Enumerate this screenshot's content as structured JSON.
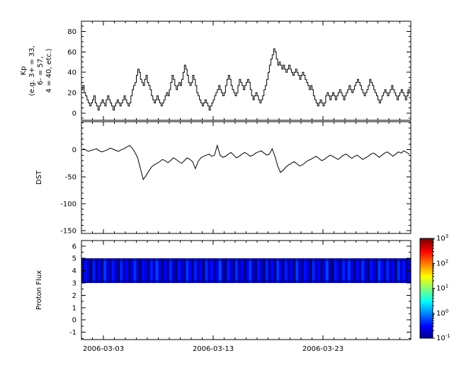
{
  "figure": {
    "background": "#ffffff",
    "axis_color": "#000000",
    "series_color": "#000000"
  },
  "xaxis": {
    "x_start": "2006-03-01",
    "x_end": "2006-03-31",
    "span_days": 30,
    "tick_labels": [
      "2006-03-03",
      "2006-03-13",
      "2006-03-23"
    ],
    "tick_days": [
      2,
      12,
      22
    ],
    "minor_tick_interval_days": 1
  },
  "chart_data": [
    {
      "panel": "kp",
      "type": "line",
      "line_style": "step",
      "ylabel_lines": [
        "Kp",
        "(e.g. 3+ = 33,",
        "6- = 57,",
        "4 = 40, etc.)"
      ],
      "ylim": [
        -7,
        90
      ],
      "yticks": [
        0,
        20,
        40,
        60,
        80
      ],
      "yminor": 5,
      "cadence_hours": 3,
      "values": [
        23,
        27,
        20,
        17,
        13,
        10,
        7,
        10,
        13,
        17,
        10,
        7,
        3,
        7,
        10,
        13,
        10,
        7,
        13,
        17,
        13,
        10,
        7,
        3,
        7,
        10,
        13,
        10,
        7,
        10,
        13,
        17,
        13,
        10,
        7,
        10,
        17,
        23,
        27,
        30,
        37,
        43,
        40,
        33,
        30,
        27,
        33,
        37,
        30,
        27,
        23,
        17,
        13,
        10,
        13,
        17,
        13,
        10,
        7,
        10,
        13,
        17,
        20,
        17,
        23,
        30,
        37,
        33,
        27,
        23,
        27,
        30,
        27,
        33,
        40,
        47,
        43,
        37,
        30,
        27,
        30,
        37,
        33,
        27,
        20,
        17,
        13,
        10,
        7,
        10,
        13,
        10,
        7,
        3,
        7,
        10,
        13,
        17,
        20,
        23,
        27,
        23,
        20,
        17,
        20,
        27,
        33,
        37,
        33,
        27,
        23,
        20,
        17,
        20,
        27,
        33,
        30,
        27,
        23,
        27,
        30,
        33,
        30,
        23,
        17,
        13,
        17,
        20,
        17,
        13,
        10,
        13,
        17,
        23,
        27,
        33,
        40,
        47,
        53,
        57,
        63,
        60,
        53,
        47,
        50,
        47,
        43,
        47,
        43,
        40,
        43,
        47,
        43,
        40,
        37,
        40,
        43,
        40,
        37,
        33,
        37,
        40,
        37,
        33,
        30,
        27,
        23,
        27,
        23,
        17,
        13,
        10,
        7,
        10,
        13,
        10,
        7,
        10,
        17,
        20,
        17,
        13,
        17,
        20,
        17,
        13,
        17,
        20,
        23,
        20,
        17,
        13,
        17,
        20,
        23,
        27,
        23,
        20,
        23,
        27,
        30,
        33,
        30,
        27,
        23,
        20,
        17,
        20,
        23,
        27,
        33,
        30,
        27,
        23,
        20,
        17,
        13,
        10,
        13,
        17,
        20,
        23,
        20,
        17,
        20,
        23,
        27,
        23,
        20,
        17,
        13,
        17,
        20,
        23,
        20,
        17,
        13,
        17,
        23,
        20
      ]
    },
    {
      "panel": "dst",
      "type": "line",
      "ylabel": "DST",
      "ylim": [
        -155,
        52
      ],
      "yticks": [
        0,
        -50,
        -100,
        -150
      ],
      "yminor": 10,
      "cadence_hours": 6,
      "values": [
        2,
        0,
        -3,
        -1,
        0,
        2,
        -2,
        -4,
        -2,
        0,
        3,
        1,
        -1,
        -3,
        0,
        2,
        5,
        8,
        3,
        -5,
        -15,
        -35,
        -55,
        -48,
        -40,
        -32,
        -28,
        -25,
        -22,
        -18,
        -20,
        -24,
        -20,
        -15,
        -18,
        -22,
        -25,
        -20,
        -15,
        -18,
        -22,
        -35,
        -22,
        -15,
        -12,
        -10,
        -8,
        -12,
        -10,
        8,
        -10,
        -14,
        -12,
        -8,
        -5,
        -10,
        -15,
        -12,
        -8,
        -5,
        -8,
        -12,
        -10,
        -6,
        -4,
        -2,
        -6,
        -10,
        -8,
        2,
        -12,
        -30,
        -42,
        -38,
        -32,
        -28,
        -25,
        -22,
        -26,
        -30,
        -28,
        -24,
        -20,
        -18,
        -15,
        -12,
        -16,
        -20,
        -18,
        -14,
        -10,
        -12,
        -15,
        -18,
        -14,
        -10,
        -8,
        -12,
        -16,
        -12,
        -10,
        -14,
        -18,
        -15,
        -12,
        -8,
        -6,
        -10,
        -14,
        -10,
        -6,
        -4,
        -8,
        -12,
        -8,
        -4,
        -6,
        -2,
        -5,
        -8
      ]
    },
    {
      "panel": "proton_flux",
      "type": "heatmap",
      "ylabel": "Proton Flux",
      "ylim": [
        -1.6,
        6.45
      ],
      "yticks": [
        -1,
        0,
        1,
        2,
        3,
        4,
        5,
        6
      ],
      "yminor": 0.5,
      "band_y": [
        3,
        5
      ],
      "cadence_hours": 6,
      "values": [
        0.12,
        0.35,
        0.18,
        0.09,
        0.42,
        0.15,
        0.28,
        0.11,
        0.52,
        0.22,
        0.14,
        0.38,
        0.2,
        0.1,
        0.45,
        0.17,
        0.3,
        0.12,
        0.26,
        0.48,
        0.16,
        0.1,
        0.33,
        0.21,
        0.13,
        0.4,
        0.18,
        0.55,
        0.24,
        0.11,
        0.3,
        0.15,
        0.44,
        0.19,
        0.1,
        0.36,
        0.22,
        0.13,
        0.5,
        0.27,
        0.12,
        0.41,
        0.17,
        0.29,
        0.1,
        0.47,
        0.2,
        0.34,
        0.14,
        0.25,
        0.6,
        0.18,
        0.11,
        0.39,
        0.23,
        0.13,
        0.46,
        0.16,
        0.31,
        0.1,
        0.27,
        0.51,
        0.19,
        0.12,
        0.37,
        0.21,
        0.1,
        0.43,
        0.15,
        0.32,
        0.11,
        0.49,
        0.24,
        0.14,
        0.4,
        0.17,
        0.28,
        0.1,
        0.53,
        0.2,
        0.13,
        0.35,
        0.22,
        0.1,
        0.45,
        0.18,
        0.3,
        0.12,
        0.26,
        0.56,
        0.15,
        0.1,
        0.38,
        0.21,
        0.13,
        0.42,
        0.19,
        0.5,
        0.23,
        0.11,
        0.33,
        0.16,
        0.47,
        0.2,
        0.1,
        0.36,
        0.24,
        0.12,
        0.54,
        0.28,
        0.14,
        0.44,
        0.18,
        0.31,
        0.1,
        0.48,
        0.22,
        0.37,
        0.13,
        0.26
      ],
      "colorbar": {
        "scale": "log",
        "vmin": 0.1,
        "vmax": 1000,
        "colormap": "jet",
        "tick_exponents": [
          -1,
          0,
          1,
          2,
          3
        ],
        "tick_labels": [
          "10^-1",
          "10^0",
          "10^1",
          "10^2",
          "10^3"
        ]
      }
    }
  ]
}
